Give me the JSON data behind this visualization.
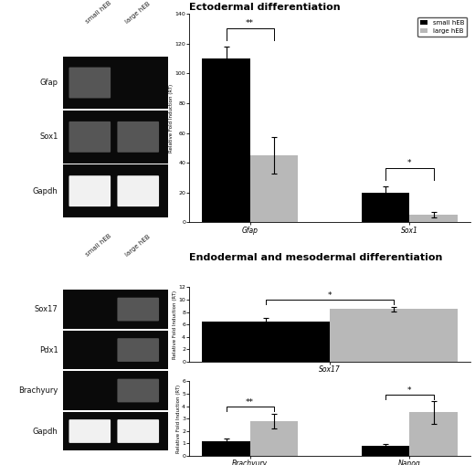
{
  "title_ecto": "Ectodermal differentiation",
  "title_endo": "Endodermal and mesodermal differentiation",
  "small_color": "#000000",
  "large_color": "#b8b8b8",
  "legend_labels": [
    "small hEB",
    "large hEB"
  ],
  "ecto_categories": [
    "Gfap",
    "Sox1"
  ],
  "ecto_small_vals": [
    110,
    20
  ],
  "ecto_large_vals": [
    45,
    5
  ],
  "ecto_small_err": [
    8,
    4
  ],
  "ecto_large_err": [
    12,
    2
  ],
  "ecto_ylim": [
    0,
    140
  ],
  "ecto_yticks": [
    0,
    20,
    40,
    60,
    80,
    100,
    120,
    140
  ],
  "ecto_ylabel": "Relative Fold Induction (RT)",
  "ecto_sig": [
    "**",
    "*"
  ],
  "sox17_categories": [
    "Sox17"
  ],
  "sox17_small_vals": [
    6.5
  ],
  "sox17_large_vals": [
    8.5
  ],
  "sox17_small_err": [
    0.6
  ],
  "sox17_large_err": [
    0.4
  ],
  "sox17_ylim": [
    0,
    12
  ],
  "sox17_yticks": [
    0,
    2,
    4,
    6,
    8,
    10,
    12
  ],
  "sox17_ylabel": "Relative Fold Induction (RT)",
  "sox17_sig": [
    "*"
  ],
  "brachyury_categories": [
    "Brachyury",
    "Nanog"
  ],
  "brachyury_small_vals": [
    1.2,
    0.8
  ],
  "brachyury_large_vals": [
    2.8,
    3.5
  ],
  "brachyury_small_err": [
    0.18,
    0.12
  ],
  "brachyury_large_err": [
    0.6,
    0.9
  ],
  "brachyury_ylim": [
    0,
    6
  ],
  "brachyury_yticks": [
    0,
    1,
    2,
    3,
    4,
    5,
    6
  ],
  "brachyury_ylabel": "Relative Fold Induction (RT)",
  "brachyury_sig": [
    "**",
    "*"
  ],
  "gel_bg": "#0a0a0a",
  "band_white": "#ffffff",
  "band_dim": "#777777",
  "band_faint": "#444444",
  "ecto_gel_labels": [
    "Gfap",
    "Sox1",
    "Gapdh"
  ],
  "ecto_bands_small": [
    1,
    1,
    2
  ],
  "ecto_bands_large": [
    0,
    1,
    2
  ],
  "endo_gel_labels": [
    "Sox17",
    "Pdx1",
    "Brachyury",
    "Gapdh"
  ],
  "endo_bands_small": [
    0,
    0,
    0,
    2
  ],
  "endo_bands_large": [
    1,
    1,
    1,
    2
  ]
}
